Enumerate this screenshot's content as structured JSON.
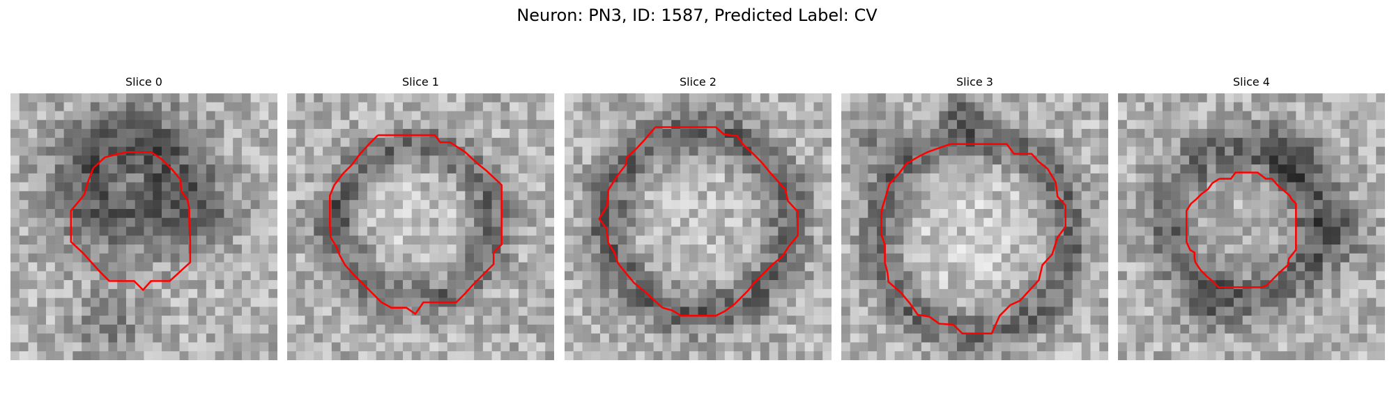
{
  "figure": {
    "title": "Neuron: PN3, ID: 1587, Predicted Label: CV",
    "outline_color": "#ff0000",
    "colormap": "grayscale"
  },
  "panels": [
    {
      "title": "Slice 0"
    },
    {
      "title": "Slice 1"
    },
    {
      "title": "Slice 2"
    },
    {
      "title": "Slice 3"
    },
    {
      "title": "Slice 4"
    }
  ]
}
